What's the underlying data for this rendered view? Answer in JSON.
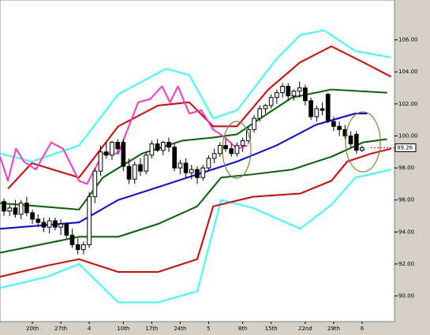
{
  "chart_data": {
    "type": "candlestick",
    "x": [
      0,
      1,
      2,
      3,
      4,
      5,
      6,
      7,
      8,
      9,
      10,
      11,
      12,
      13,
      14,
      15,
      16,
      17,
      18,
      19,
      20,
      21,
      22,
      23,
      24,
      25,
      26,
      27,
      28,
      29,
      30,
      31,
      32,
      33,
      34,
      35,
      36,
      37,
      38,
      39,
      40,
      41,
      42,
      43,
      44,
      45,
      46,
      47,
      48,
      49,
      50,
      51,
      52,
      53,
      54,
      55,
      56,
      57,
      58,
      59,
      60,
      61,
      62,
      63
    ],
    "open": [
      95.9,
      95.3,
      95.5,
      95.1,
      95.8,
      95.2,
      94.8,
      94.6,
      94.3,
      94.7,
      94.3,
      94.5,
      93.8,
      93.2,
      92.9,
      93.2,
      96.2,
      97.8,
      99.0,
      98.8,
      99.6,
      99.6,
      98.1,
      97.3,
      98.2,
      97.8,
      98.8,
      99.5,
      99.1,
      99.6,
      99.3,
      98.0,
      98.3,
      97.7,
      97.9,
      97.4,
      98.0,
      98.6,
      98.9,
      99.4,
      99.2,
      98.9,
      99.4,
      99.7,
      100.4,
      101.1,
      101.7,
      101.9,
      102.4,
      102.7,
      103.1,
      102.5,
      102.8,
      103.0,
      102.2,
      101.2,
      101.7,
      102.6,
      100.9,
      100.6,
      100.4,
      100.0,
      100.1,
      99.1
    ],
    "high": [
      96.1,
      95.7,
      96.0,
      96.0,
      96.2,
      95.4,
      95.1,
      94.9,
      94.9,
      94.9,
      94.8,
      94.6,
      94.2,
      93.6,
      93.4,
      96.5,
      98.0,
      99.4,
      99.6,
      99.7,
      99.8,
      99.8,
      98.6,
      98.4,
      98.6,
      99.0,
      99.7,
      99.8,
      99.7,
      99.9,
      99.5,
      98.5,
      98.6,
      98.2,
      98.1,
      98.2,
      98.8,
      99.2,
      99.6,
      99.8,
      99.5,
      99.6,
      99.9,
      100.6,
      101.3,
      101.9,
      102.0,
      102.6,
      102.9,
      103.3,
      103.3,
      102.9,
      103.4,
      103.2,
      102.4,
      101.9,
      102.1,
      102.7,
      101.2,
      100.9,
      100.7,
      100.3,
      100.3,
      99.4
    ],
    "low": [
      95.0,
      95.0,
      94.9,
      94.8,
      95.0,
      94.5,
      94.3,
      94.0,
      93.9,
      94.1,
      93.8,
      93.6,
      93.0,
      92.6,
      92.6,
      93.0,
      95.8,
      97.5,
      98.6,
      98.5,
      98.9,
      97.8,
      97.0,
      97.0,
      97.5,
      97.6,
      98.6,
      99.0,
      98.8,
      99.0,
      97.8,
      97.6,
      97.4,
      97.3,
      97.0,
      97.2,
      97.8,
      98.3,
      98.7,
      99.0,
      98.7,
      98.7,
      99.0,
      99.5,
      100.2,
      100.9,
      101.4,
      101.7,
      102.0,
      102.4,
      102.2,
      102.2,
      102.4,
      101.9,
      101.0,
      100.9,
      101.3,
      100.8,
      100.3,
      100.0,
      99.8,
      99.3,
      98.9,
      99.0
    ],
    "close": [
      95.3,
      95.5,
      95.1,
      95.8,
      95.2,
      94.8,
      94.6,
      94.3,
      94.7,
      94.3,
      94.5,
      93.8,
      93.2,
      92.9,
      93.2,
      96.2,
      97.8,
      99.0,
      98.8,
      99.6,
      99.2,
      98.1,
      97.3,
      98.2,
      97.8,
      98.8,
      99.5,
      99.1,
      99.6,
      99.3,
      98.0,
      98.3,
      97.7,
      97.9,
      97.4,
      98.0,
      98.6,
      98.9,
      99.4,
      99.2,
      98.9,
      99.4,
      99.7,
      100.4,
      101.1,
      101.7,
      101.9,
      102.4,
      102.7,
      103.1,
      102.5,
      102.8,
      103.0,
      102.2,
      101.2,
      101.7,
      101.6,
      100.9,
      100.6,
      100.4,
      100.0,
      99.5,
      99.1,
      99.26
    ],
    "series": [
      {
        "color": "#33ffff",
        "x": [
          -0.7,
          4.9,
          13.2,
          20.1,
          28.5,
          32.6,
          36.8,
          41.0,
          47.9,
          52.1,
          56.3,
          61.8,
          68.1
        ],
        "values": [
          98.9,
          98.4,
          99.4,
          102.6,
          104.2,
          103.8,
          101.1,
          101.6,
          104.8,
          106.3,
          106.6,
          105.3,
          104.9
        ]
      },
      {
        "color": "#33ffff",
        "x": [
          -0.7,
          7.6,
          13.2,
          20.1,
          27.1,
          34.0,
          38.2,
          43.8,
          52.1,
          57.6,
          61.8,
          68.1
        ],
        "values": [
          90.5,
          91.2,
          92.0,
          89.6,
          89.6,
          90.3,
          96.0,
          95.5,
          94.2,
          95.7,
          97.4,
          97.9
        ]
      },
      {
        "color": "#dd0000",
        "x": [
          0.7,
          4.9,
          13.2,
          20.1,
          27.1,
          32.6,
          36.8,
          41.0,
          46.5,
          52.1,
          57.6,
          63.2,
          68.1
        ],
        "values": [
          96.7,
          98.3,
          97.4,
          100.6,
          101.9,
          102.1,
          100.6,
          100.6,
          102.9,
          104.6,
          105.6,
          104.6,
          103.7
        ]
      },
      {
        "color": "#dd0000",
        "x": [
          -0.7,
          7.6,
          13.2,
          20.1,
          27.1,
          34.0,
          36.8,
          43.8,
          52.1,
          57.6,
          60.4,
          64.6,
          68.1
        ],
        "values": [
          91.2,
          91.9,
          92.3,
          91.5,
          91.5,
          92.3,
          95.6,
          96.2,
          96.4,
          97.2,
          98.4,
          98.9,
          99.2
        ]
      },
      {
        "color": "#006400",
        "x": [
          -0.7,
          6.3,
          13.2,
          17.4,
          24.3,
          31.3,
          36.8,
          41.0,
          45.1,
          50.7,
          57.6,
          67.4
        ],
        "values": [
          95.8,
          95.6,
          95.4,
          97.4,
          98.9,
          99.7,
          99.9,
          100.1,
          101.1,
          102.4,
          102.9,
          102.7
        ]
      },
      {
        "color": "#006400",
        "x": [
          -0.7,
          6.3,
          13.2,
          20.1,
          27.1,
          34.0,
          38.2,
          43.8,
          50.7,
          57.6,
          63.2,
          67.4
        ],
        "values": [
          92.7,
          93.2,
          93.7,
          93.7,
          94.5,
          95.6,
          97.4,
          97.6,
          97.9,
          98.7,
          99.6,
          99.8
        ]
      },
      {
        "color": "#0000ff",
        "x": [
          -0.7,
          13.2,
          20.1,
          27.1,
          34.0,
          41.0,
          47.9,
          54.9,
          61.8,
          63.9
        ],
        "values": [
          94.2,
          94.6,
          96.0,
          96.8,
          97.6,
          98.4,
          99.4,
          100.7,
          101.4,
          101.4
        ]
      },
      {
        "color": "#ff33cc",
        "x": [
          -0.7,
          0.7,
          2.1,
          3.5,
          5.6,
          8.3,
          10.4,
          13.2,
          14.6,
          17.4,
          20.1,
          23.6,
          25.7,
          27.8,
          29.2,
          30.6,
          32.6,
          34.7,
          36.8,
          38.9,
          41.0,
          42.8
        ],
        "values": [
          98.7,
          97.2,
          99.2,
          98.4,
          97.9,
          99.6,
          99.2,
          97.2,
          97.0,
          98.9,
          98.9,
          102.1,
          102.3,
          103.1,
          102.1,
          103.1,
          101.4,
          101.6,
          100.4,
          99.9,
          99.2,
          99.4
        ]
      }
    ],
    "last_price": 99.26,
    "xlim": [
      -0.7,
      68.7
    ],
    "ylim": [
      88.4,
      108
    ],
    "yticks": [
      {
        "value": 90,
        "label": "90.00"
      },
      {
        "value": 92,
        "label": "92.00"
      },
      {
        "value": 94,
        "label": "94.00"
      },
      {
        "value": 96,
        "label": "96.00"
      },
      {
        "value": 98,
        "label": "98.00"
      },
      {
        "value": 100,
        "label": "100.00"
      },
      {
        "value": 102,
        "label": "102.00"
      },
      {
        "value": 104,
        "label": "104.00"
      },
      {
        "value": 106,
        "label": "106.00"
      }
    ],
    "xticks": [
      {
        "value": 5,
        "label": "20th"
      },
      {
        "value": 10,
        "label": "27th"
      },
      {
        "value": 15,
        "label": "4"
      },
      {
        "value": 21,
        "label": "10th"
      },
      {
        "value": 26,
        "label": "17th"
      },
      {
        "value": 31,
        "label": "24th"
      },
      {
        "value": 36,
        "label": "5"
      },
      {
        "value": 42,
        "label": "8th"
      },
      {
        "value": 47,
        "label": "15th"
      },
      {
        "value": 53,
        "label": "22nd"
      },
      {
        "value": 58,
        "label": "29th"
      },
      {
        "value": 63,
        "label": "6"
      }
    ],
    "grid": false
  }
}
